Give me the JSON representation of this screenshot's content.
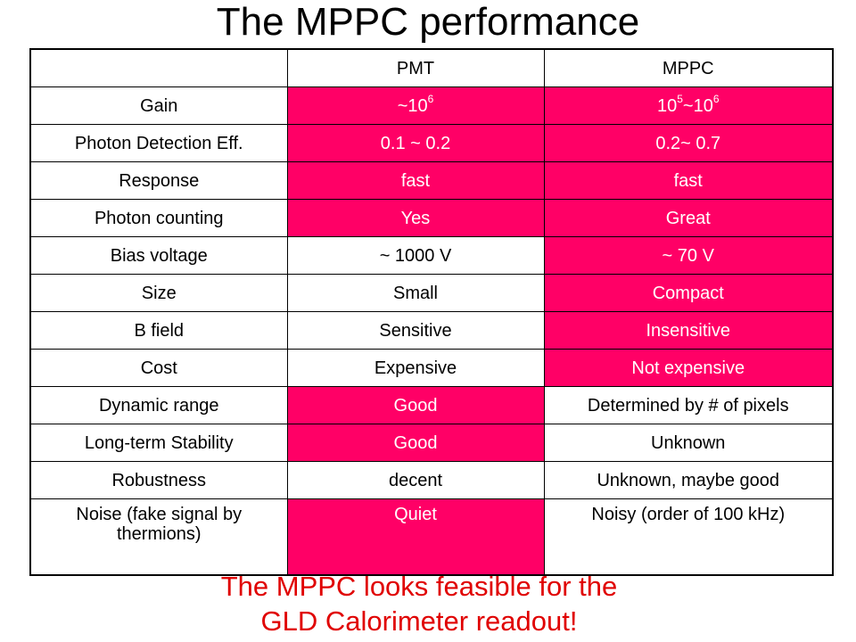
{
  "title": "The MPPC performance",
  "colors": {
    "highlight": "#ff0066",
    "footer_text": "#e00000"
  },
  "table": {
    "headers": [
      "",
      "PMT",
      "MPPC"
    ],
    "rows": [
      {
        "label": "Gain",
        "pmt": "~10",
        "pmt_sup": "6",
        "mppc": "10",
        "mppc_sup": "5",
        "mppc_mid": "~10",
        "mppc_sup2": "6",
        "pmt_hl": true,
        "mppc_hl": true
      },
      {
        "label": "Photon Detection Eff.",
        "pmt": "0.1 ~ 0.2",
        "mppc": "0.2~ 0.7",
        "pmt_hl": true,
        "mppc_hl": true
      },
      {
        "label": "Response",
        "pmt": "fast",
        "mppc": "fast",
        "pmt_hl": true,
        "mppc_hl": true
      },
      {
        "label": "Photon counting",
        "pmt": "Yes",
        "mppc": "Great",
        "pmt_hl": true,
        "mppc_hl": true
      },
      {
        "label": "Bias voltage",
        "pmt": "~ 1000 V",
        "mppc": "~ 70 V",
        "pmt_hl": false,
        "mppc_hl": true
      },
      {
        "label": "Size",
        "pmt": "Small",
        "mppc": "Compact",
        "pmt_hl": false,
        "mppc_hl": true
      },
      {
        "label": "B field",
        "pmt": "Sensitive",
        "mppc": "Insensitive",
        "pmt_hl": false,
        "mppc_hl": true
      },
      {
        "label": "Cost",
        "pmt": "Expensive",
        "mppc": "Not expensive",
        "pmt_hl": false,
        "mppc_hl": true
      },
      {
        "label": "Dynamic range",
        "pmt": "Good",
        "mppc": "Determined by # of pixels",
        "pmt_hl": true,
        "mppc_hl": false
      },
      {
        "label": "Long-term Stability",
        "pmt": "Good",
        "mppc": "Unknown",
        "pmt_hl": true,
        "mppc_hl": false
      },
      {
        "label": "Robustness",
        "pmt": "decent",
        "mppc": "Unknown, maybe good",
        "pmt_hl": false,
        "mppc_hl": false
      },
      {
        "label": "Noise (fake signal by thermions)",
        "pmt": "Quiet",
        "mppc": "Noisy (order of 100 kHz)",
        "pmt_hl": true,
        "mppc_hl": false
      }
    ]
  },
  "footer": {
    "line1": "The MPPC looks feasible for the",
    "line2": "GLD Calorimeter readout!"
  }
}
